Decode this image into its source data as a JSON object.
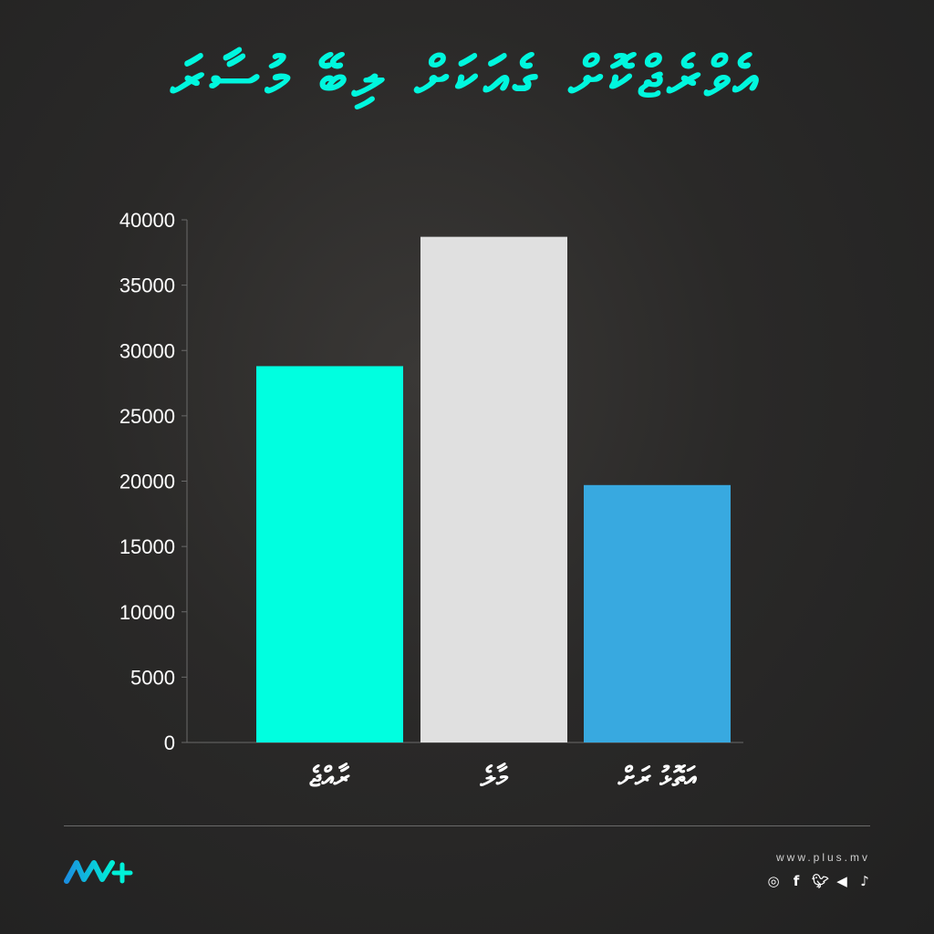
{
  "title": "އެވްރެޖްކޮށް ގެއަކަށް ލިބޭ މުސާރަ",
  "chart_data": {
    "type": "bar",
    "title": "އެވްރެޖްކޮށް ގެއަކަށް ލިބޭ މުސާރަ",
    "categories": [
      "ރާއްޖެ",
      "މާލެ",
      "އަތޮޅު ރަށް"
    ],
    "values": [
      28800,
      38700,
      19700
    ],
    "colors": [
      "#00ffe0",
      "#e0e0e0",
      "#38a9e0"
    ],
    "ylim": [
      0,
      40000
    ],
    "yticks": [
      "0",
      "5000",
      "10000",
      "15000",
      "20000",
      "25000",
      "30000",
      "35000",
      "40000"
    ],
    "xlabel": "",
    "ylabel": "",
    "grid": false,
    "legend": "none"
  },
  "footer": {
    "website": "www.plus.mv",
    "logo_icon": "mv-plus-logo",
    "social_icons": [
      "instagram-icon",
      "facebook-icon",
      "twitter-icon",
      "telegram-icon",
      "tiktok-icon"
    ]
  }
}
